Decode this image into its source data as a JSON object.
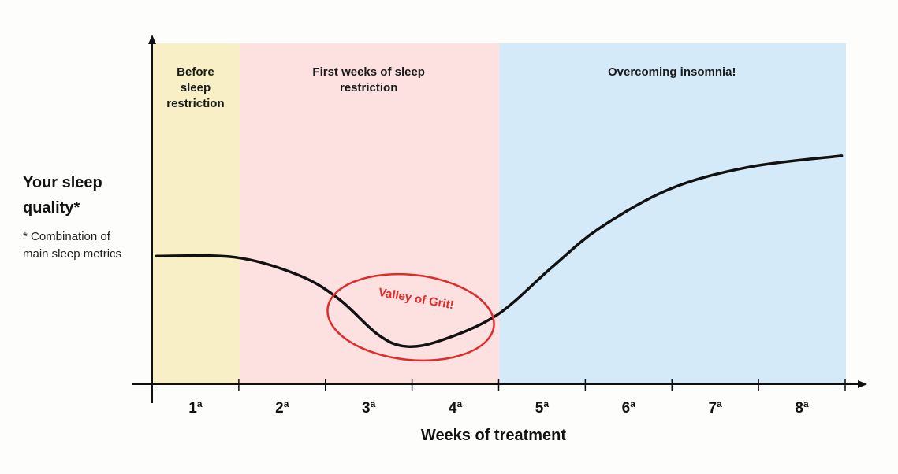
{
  "chart_data": {
    "type": "line",
    "title": "",
    "xlabel": "Weeks of treatment",
    "ylabel": "Your sleep quality*",
    "ylabel_note": "* Combination of main sleep metrics",
    "xlim": [
      0,
      8
    ],
    "ylim": [
      0,
      10
    ],
    "y_ticks_shown": false,
    "grid": false,
    "tick_labels": [
      {
        "num": "1",
        "sup": "a"
      },
      {
        "num": "2",
        "sup": "a"
      },
      {
        "num": "3",
        "sup": "a"
      },
      {
        "num": "4",
        "sup": "a"
      },
      {
        "num": "5",
        "sup": "a"
      },
      {
        "num": "6",
        "sup": "a"
      },
      {
        "num": "7",
        "sup": "a"
      },
      {
        "num": "8",
        "sup": "a"
      }
    ],
    "zones": [
      {
        "label_lines": [
          "Before",
          "sleep",
          "restriction"
        ],
        "from": 0,
        "to": 1,
        "color": "#f8efc6"
      },
      {
        "label_lines": [
          "First weeks of sleep",
          "restriction"
        ],
        "from": 1,
        "to": 4,
        "color": "#fde0e0"
      },
      {
        "label_lines": [
          "Overcoming insomnia!"
        ],
        "from": 4,
        "to": 8,
        "color": "#d5eaf9"
      }
    ],
    "series": [
      {
        "color": "#111111",
        "x": [
          0.05,
          0.97,
          1.7,
          2.16,
          2.61,
          2.93,
          3.34,
          3.98,
          4.61,
          5.16,
          5.98,
          6.89,
          7.96
        ],
        "y": [
          3.76,
          3.72,
          3.19,
          2.49,
          1.45,
          1.11,
          1.29,
          2.03,
          3.42,
          4.57,
          5.73,
          6.37,
          6.7
        ]
      }
    ],
    "annotations": [
      {
        "text": "Valley of Grit!",
        "shape": "ellipse",
        "color": "#e02b2b",
        "x": 3.0,
        "y": 1.9
      }
    ]
  }
}
